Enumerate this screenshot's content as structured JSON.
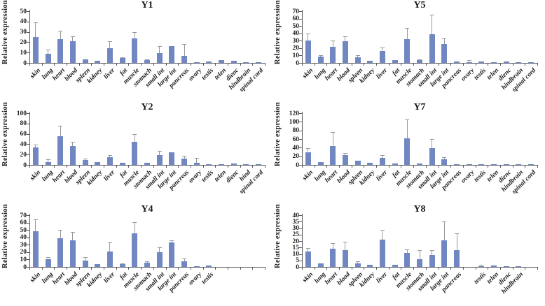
{
  "figure": {
    "ylabel": "Relative expression",
    "bar_color": "#7187c2",
    "error_color": "#999999",
    "axis_color": "#55595f",
    "text_color": "#1a1a1a"
  },
  "chart_data": [
    {
      "id": "Y1",
      "title": "Y1",
      "type": "bar",
      "xlabel": "",
      "ylabel": "Relative expression",
      "ylim": [
        0,
        50
      ],
      "ytick_step": 10,
      "grid": false,
      "legend": "none",
      "categories": [
        "skin",
        "lung",
        "heart",
        "blood",
        "spleen",
        "kidney",
        "liver",
        "fat",
        "muscle",
        "stomach",
        "small int",
        "large int",
        "pancreas",
        "ovary",
        "testis",
        "telen",
        "dienc",
        "hindbrain",
        "spinal cord"
      ],
      "values": [
        25,
        8.5,
        23,
        21,
        3.5,
        2,
        14,
        4.5,
        23.5,
        2.5,
        9.5,
        16,
        6.5,
        0.5,
        1.2,
        2.8,
        2.2,
        0.7,
        0.3
      ],
      "errors": [
        14,
        4.5,
        8,
        5,
        0.6,
        0.3,
        7,
        1,
        6,
        1,
        7,
        0.5,
        11.5,
        0.2,
        0.3,
        0.5,
        0.5,
        0.3,
        0.1
      ]
    },
    {
      "id": "Y5",
      "title": "Y5",
      "type": "bar",
      "xlabel": "",
      "ylabel": "Relative expression",
      "ylim": [
        0,
        70
      ],
      "ytick_step": 10,
      "grid": false,
      "legend": "none",
      "categories": [
        "skin",
        "lung",
        "heart",
        "blood",
        "spleen",
        "kidney",
        "liver",
        "fat",
        "muscle",
        "stomach",
        "small int",
        "large int",
        "pancreas",
        "ovary",
        "testis",
        "telen",
        "dienc",
        "hindbrain",
        "spinal cord"
      ],
      "values": [
        30,
        8.5,
        22,
        29.5,
        8,
        2.5,
        16,
        3.5,
        32.5,
        3.5,
        39,
        26,
        1.8,
        1.2,
        1.8,
        0.8,
        1.5,
        0.8,
        0.2
      ],
      "errors": [
        10,
        2,
        8.5,
        6,
        2.5,
        0.5,
        5,
        0.7,
        14.5,
        1.5,
        26.5,
        7,
        0.4,
        2.3,
        0.4,
        0.2,
        0.4,
        0.3,
        0.1
      ]
    },
    {
      "id": "Y2",
      "title": "Y2",
      "type": "bar",
      "xlabel": "",
      "ylabel": "Relative expression",
      "ylim": [
        0,
        100
      ],
      "ytick_step": 20,
      "grid": false,
      "legend": "none",
      "categories": [
        "skin",
        "lung",
        "heart",
        "blood",
        "spleen",
        "kidney",
        "liver",
        "fat",
        "muscle",
        "stomach",
        "small int",
        "large int",
        "pancreas",
        "ovary",
        "testis",
        "telen",
        "dienc",
        "hind",
        "spinal cord"
      ],
      "values": [
        34,
        6,
        55,
        36.5,
        9.5,
        5.5,
        14.5,
        4.5,
        45,
        4,
        18.5,
        24.5,
        11.5,
        3.5,
        1.5,
        1,
        3,
        1,
        0.3
      ],
      "errors": [
        5,
        5,
        21,
        7.5,
        2.5,
        1,
        4.5,
        0.8,
        14,
        0.8,
        8,
        1,
        5.5,
        9.5,
        0.5,
        0.3,
        0.8,
        0.3,
        0.1
      ]
    },
    {
      "id": "Y7",
      "title": "Y7",
      "type": "bar",
      "xlabel": "",
      "ylabel": "Relative expression",
      "ylim": [
        0,
        120
      ],
      "ytick_step": 20,
      "grid": false,
      "legend": "none",
      "categories": [
        "skin",
        "lung",
        "heart",
        "blood",
        "spleen",
        "kidney",
        "liver",
        "fat",
        "muscle",
        "stomach",
        "small int",
        "large int",
        "pancreas",
        "ovary",
        "testis",
        "telen",
        "dienc",
        "hindbrain",
        "spinal cord"
      ],
      "values": [
        30,
        7,
        44,
        23,
        9,
        4.5,
        16,
        3,
        61,
        3.5,
        39.5,
        13,
        1.5,
        0.5,
        1,
        2,
        2,
        1,
        0.3
      ],
      "errors": [
        9,
        1.5,
        33,
        4.5,
        1.5,
        0.8,
        7,
        0.8,
        44,
        0.8,
        20.5,
        4.5,
        0.5,
        0.2,
        0.3,
        0.5,
        0.5,
        0.3,
        0.1
      ]
    },
    {
      "id": "Y4",
      "title": "Y4",
      "type": "bar",
      "xlabel": "",
      "ylabel": "Relative expression",
      "ylim": [
        0,
        70
      ],
      "ytick_step": 10,
      "grid": false,
      "legend": "none",
      "categories": [
        "skin",
        "lung",
        "heart",
        "blood",
        "spleen",
        "kidney",
        "liver",
        "fat",
        "muscle",
        "stomach",
        "small int",
        "large int",
        "pancreas",
        "ovary",
        "testis",
        "",
        "",
        "",
        ""
      ],
      "values": [
        48,
        10.5,
        38.5,
        35.5,
        8.5,
        3.5,
        20.5,
        4,
        45.5,
        5.5,
        19.5,
        33,
        8,
        1,
        1.5,
        null,
        null,
        null,
        null
      ],
      "errors": [
        16,
        3,
        12,
        11.5,
        4.5,
        0.5,
        13,
        1,
        15,
        2.5,
        7,
        2.5,
        3,
        0.5,
        0.3,
        null,
        null,
        null,
        null
      ]
    },
    {
      "id": "Y8",
      "title": "Y8",
      "type": "bar",
      "xlabel": "",
      "ylabel": "Relative expression",
      "ylim": [
        0,
        40
      ],
      "ytick_step": 5,
      "grid": false,
      "legend": "none",
      "categories": [
        "skin",
        "lung",
        "heart",
        "blood",
        "spleen",
        "kidney",
        "liver",
        "fat",
        "muscle",
        "stomach",
        "small int",
        "large int",
        "pancreas",
        "",
        "testis",
        "telen",
        "dienc",
        "hindbrain",
        ""
      ],
      "values": [
        12,
        2.8,
        14,
        13,
        2.8,
        1.5,
        21.2,
        1.5,
        10.8,
        5.8,
        9.2,
        20.7,
        13.2,
        null,
        0.8,
        0.9,
        0.7,
        0.3,
        null
      ],
      "errors": [
        2.5,
        0.3,
        4.5,
        6.5,
        1.4,
        0.4,
        7.3,
        0.3,
        2.7,
        7.4,
        3.6,
        14.3,
        12.6,
        null,
        0.7,
        0.2,
        0.2,
        0.1,
        null
      ]
    }
  ]
}
